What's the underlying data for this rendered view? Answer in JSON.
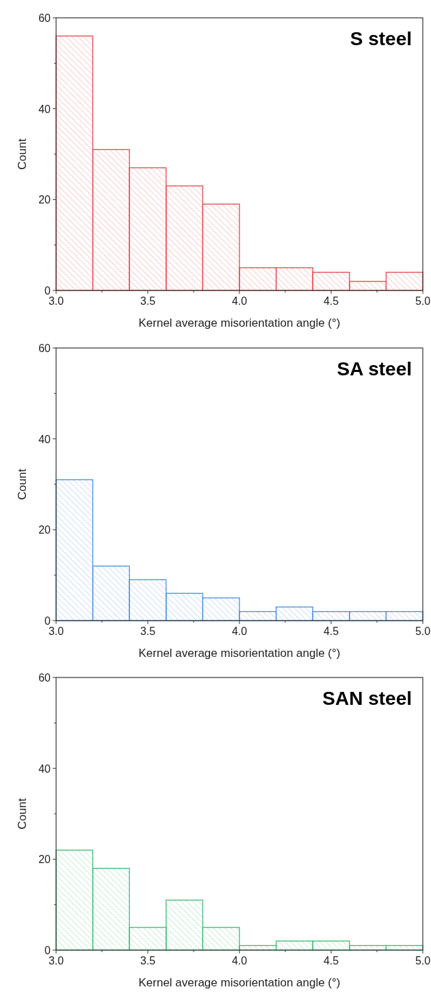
{
  "chart_data": [
    {
      "type": "histogram",
      "title": "S steel",
      "xlabel": "Kernel average misorientation angle (°)",
      "ylabel": "Count",
      "color": "#e8474c",
      "bins": [
        3.0,
        3.2,
        3.4,
        3.6,
        3.8,
        4.0,
        4.2,
        4.4,
        4.6,
        4.8,
        5.0
      ],
      "values": [
        56,
        31,
        27,
        23,
        19,
        5,
        5,
        4,
        2,
        4
      ],
      "xlim": [
        3.0,
        5.0
      ],
      "ylim": [
        0,
        60
      ],
      "xticks": [
        {
          "value": 3.0,
          "label": "3.0"
        },
        {
          "value": 3.25,
          "label": null
        },
        {
          "value": 3.5,
          "label": "3.5"
        },
        {
          "value": 3.75,
          "label": null
        },
        {
          "value": 4.0,
          "label": "4.0"
        },
        {
          "value": 4.25,
          "label": null
        },
        {
          "value": 4.5,
          "label": "4.5"
        },
        {
          "value": 4.75,
          "label": null
        },
        {
          "value": 5.0,
          "label": "5.0"
        }
      ],
      "yticks": [
        0,
        {
          "value": 10,
          "label": null
        },
        20,
        {
          "value": 30,
          "label": null
        },
        40,
        {
          "value": 50,
          "label": null
        },
        60
      ]
    },
    {
      "type": "histogram",
      "title": "SA steel",
      "xlabel": "Kernel average misorientation angle (°)",
      "ylabel": "Count",
      "color": "#4a8fe0",
      "bins": [
        3.0,
        3.2,
        3.4,
        3.6,
        3.8,
        4.0,
        4.2,
        4.4,
        4.6,
        4.8,
        5.0
      ],
      "values": [
        31,
        12,
        9,
        6,
        5,
        2,
        3,
        2,
        2,
        2
      ],
      "xlim": [
        3.0,
        5.0
      ],
      "ylim": [
        0,
        60
      ],
      "xticks": [
        {
          "value": 3.0,
          "label": "3.0"
        },
        {
          "value": 3.25,
          "label": null
        },
        {
          "value": 3.5,
          "label": "3.5"
        },
        {
          "value": 3.75,
          "label": null
        },
        {
          "value": 4.0,
          "label": "4.0"
        },
        {
          "value": 4.25,
          "label": null
        },
        {
          "value": 4.5,
          "label": "4.5"
        },
        {
          "value": 4.75,
          "label": null
        },
        {
          "value": 5.0,
          "label": "5.0"
        }
      ],
      "yticks": [
        0,
        {
          "value": 10,
          "label": null
        },
        20,
        {
          "value": 30,
          "label": null
        },
        40,
        {
          "value": 50,
          "label": null
        },
        60
      ]
    },
    {
      "type": "histogram",
      "title": "SAN steel",
      "xlabel": "Kernel average misorientation angle (°)",
      "ylabel": "Count",
      "color": "#3dbb78",
      "bins": [
        3.0,
        3.2,
        3.4,
        3.6,
        3.8,
        4.0,
        4.2,
        4.4,
        4.6,
        4.8,
        5.0
      ],
      "values": [
        22,
        18,
        5,
        11,
        5,
        1,
        2,
        2,
        1,
        1
      ],
      "xlim": [
        3.0,
        5.0
      ],
      "ylim": [
        0,
        60
      ],
      "xticks": [
        {
          "value": 3.0,
          "label": "3.0"
        },
        {
          "value": 3.25,
          "label": null
        },
        {
          "value": 3.5,
          "label": "3.5"
        },
        {
          "value": 3.75,
          "label": null
        },
        {
          "value": 4.0,
          "label": "4.0"
        },
        {
          "value": 4.25,
          "label": null
        },
        {
          "value": 4.5,
          "label": "4.5"
        },
        {
          "value": 4.75,
          "label": null
        },
        {
          "value": 5.0,
          "label": "5.0"
        }
      ],
      "yticks": [
        0,
        {
          "value": 10,
          "label": null
        },
        20,
        {
          "value": 30,
          "label": null
        },
        40,
        {
          "value": 50,
          "label": null
        },
        60
      ]
    }
  ]
}
